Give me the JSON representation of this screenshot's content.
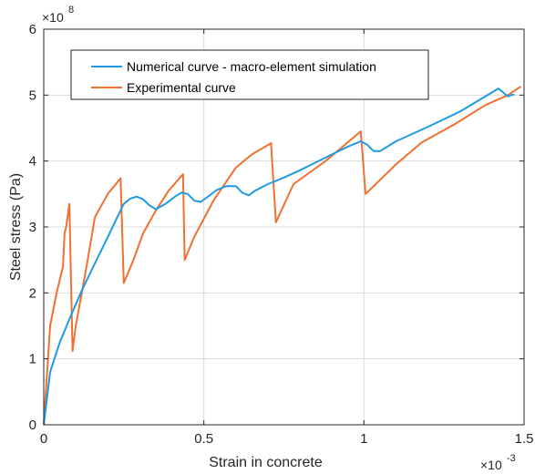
{
  "chart_data": {
    "type": "line",
    "xlabel": "Strain in concrete",
    "ylabel": "Steel stress (Pa)",
    "x_exponent_base": "×10",
    "x_exponent_power": "-3",
    "y_exponent_base": "×10",
    "y_exponent_power": "8",
    "xlim": [
      0,
      1.5
    ],
    "ylim": [
      0,
      6
    ],
    "x_scale_note": "x values in units of 1e-3, y values in units of 1e8 Pa",
    "x_ticks": [
      0,
      0.5,
      1,
      1.5
    ],
    "x_tick_labels": [
      "0",
      "0.5",
      "1",
      "1.5"
    ],
    "y_ticks": [
      0,
      1,
      2,
      3,
      4,
      5,
      6
    ],
    "y_tick_labels": [
      "0",
      "1",
      "2",
      "3",
      "4",
      "5",
      "6"
    ],
    "grid": true,
    "legend_position": "top",
    "series": [
      {
        "name": "Numerical curve - macro-element simulation",
        "color": "#1f9be6",
        "x": [
          0,
          0.02,
          0.05,
          0.08,
          0.12,
          0.16,
          0.2,
          0.23,
          0.25,
          0.27,
          0.29,
          0.31,
          0.33,
          0.35,
          0.38,
          0.41,
          0.43,
          0.45,
          0.47,
          0.49,
          0.51,
          0.54,
          0.57,
          0.6,
          0.62,
          0.64,
          0.66,
          0.7,
          0.75,
          0.8,
          0.85,
          0.9,
          0.95,
          0.99,
          1.01,
          1.03,
          1.05,
          1.1,
          1.2,
          1.3,
          1.42,
          1.45,
          1.46,
          1.47
        ],
        "y": [
          0,
          0.8,
          1.25,
          1.6,
          2.05,
          2.45,
          2.85,
          3.15,
          3.35,
          3.43,
          3.46,
          3.42,
          3.33,
          3.27,
          3.35,
          3.46,
          3.52,
          3.5,
          3.4,
          3.38,
          3.45,
          3.56,
          3.62,
          3.62,
          3.52,
          3.48,
          3.55,
          3.65,
          3.75,
          3.86,
          3.98,
          4.1,
          4.22,
          4.3,
          4.25,
          4.15,
          4.15,
          4.3,
          4.52,
          4.75,
          5.1,
          4.98,
          5.0,
          5.01
        ]
      },
      {
        "name": "Experimental curve",
        "color": "#f07030",
        "x": [
          0,
          0.02,
          0.04,
          0.06,
          0.065,
          0.07,
          0.08,
          0.09,
          0.1,
          0.13,
          0.16,
          0.2,
          0.24,
          0.25,
          0.28,
          0.31,
          0.35,
          0.39,
          0.435,
          0.44,
          0.47,
          0.53,
          0.6,
          0.65,
          0.71,
          0.725,
          0.78,
          0.88,
          0.99,
          1.005,
          1.1,
          1.18,
          1.28,
          1.38,
          1.45,
          1.49
        ],
        "y": [
          0,
          1.5,
          2.0,
          2.4,
          2.9,
          3.0,
          3.35,
          1.12,
          1.5,
          2.3,
          3.15,
          3.5,
          3.74,
          2.15,
          2.5,
          2.9,
          3.25,
          3.55,
          3.8,
          2.5,
          2.85,
          3.4,
          3.9,
          4.1,
          4.27,
          3.07,
          3.65,
          4.0,
          4.45,
          3.5,
          3.95,
          4.28,
          4.55,
          4.85,
          5.0,
          5.13
        ]
      }
    ]
  }
}
